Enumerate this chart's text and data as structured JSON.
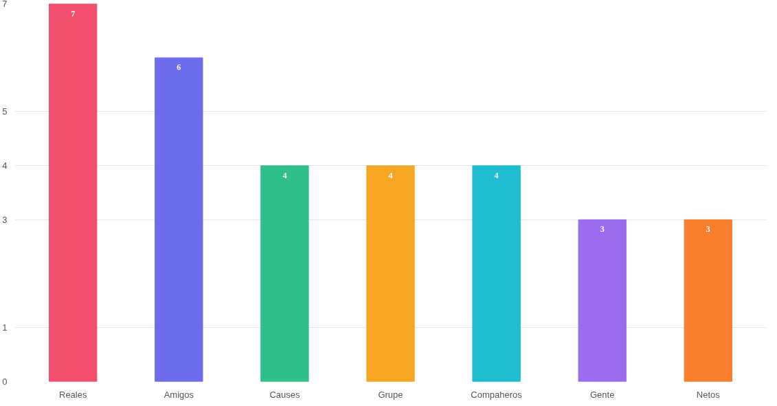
{
  "chart_data": {
    "type": "bar",
    "categories": [
      "Reales",
      "Amigos",
      "Causes",
      "Grupe",
      "Compaheros",
      "Gente",
      "Netos"
    ],
    "values": [
      7,
      6,
      4,
      4,
      4,
      3,
      3
    ],
    "colors": [
      "#f0506e",
      "#6c6cec",
      "#2ebf8a",
      "#f5a623",
      "#1fbcd2",
      "#9b6cf0",
      "#f77f2e"
    ],
    "ylim": [
      0,
      7
    ],
    "yticks": [
      0,
      1,
      3,
      4,
      5,
      7
    ],
    "grid": "y",
    "data_labels": true
  }
}
